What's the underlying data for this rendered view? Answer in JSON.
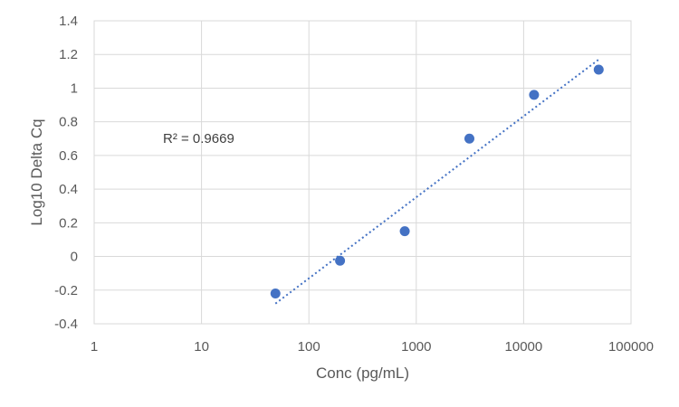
{
  "chart_data": {
    "type": "scatter",
    "title": "",
    "xlabel": "Conc (pg/mL)",
    "ylabel": "Log10 Delta Cq",
    "x_scale": "log",
    "xlim": [
      1,
      100000
    ],
    "ylim": [
      -0.4,
      1.4
    ],
    "x_ticks": [
      1,
      10,
      100,
      1000,
      10000,
      100000
    ],
    "x_tick_labels": [
      "1",
      "10",
      "100",
      "1000",
      "10000",
      "100000"
    ],
    "y_ticks": [
      -0.4,
      -0.2,
      0,
      0.2,
      0.4,
      0.6,
      0.8,
      1,
      1.2,
      1.4
    ],
    "y_tick_labels": [
      "-0.4",
      "-0.2",
      "0",
      "0.2",
      "0.4",
      "0.6",
      "0.8",
      "1",
      "1.2",
      "1.4"
    ],
    "grid": true,
    "series": [
      {
        "x": [
          48.8,
          195,
          781,
          3125,
          12500,
          50000
        ],
        "y": [
          -0.22,
          -0.025,
          0.15,
          0.7,
          0.96,
          1.11
        ],
        "color": "#4472c4",
        "marker": "circle"
      }
    ],
    "trendline": {
      "type": "log",
      "x_start": 48.8,
      "x_end": 50000,
      "y_start": -0.28,
      "y_end": 1.17,
      "color": "#4472c4",
      "style": "dotted"
    },
    "annotations": [
      {
        "text": "R² = 0.9669"
      }
    ]
  }
}
